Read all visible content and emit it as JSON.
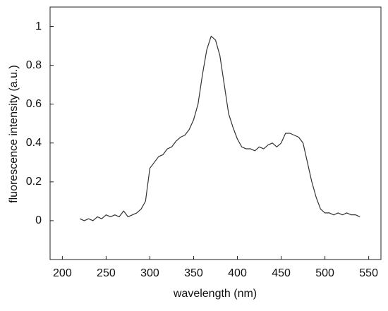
{
  "chart_data": {
    "type": "line",
    "xlabel": "wavelength (nm)",
    "ylabel": "fluorescence intensity  (a.u.)",
    "x": [
      220,
      225,
      230,
      235,
      240,
      245,
      250,
      255,
      260,
      265,
      270,
      275,
      280,
      285,
      290,
      295,
      300,
      305,
      310,
      315,
      320,
      325,
      330,
      335,
      340,
      345,
      350,
      355,
      360,
      365,
      370,
      375,
      380,
      385,
      390,
      395,
      400,
      405,
      410,
      415,
      420,
      425,
      430,
      435,
      440,
      445,
      450,
      455,
      460,
      465,
      470,
      475,
      480,
      485,
      490,
      495,
      500,
      505,
      510,
      515,
      520,
      525,
      530,
      535,
      540
    ],
    "values": [
      0.01,
      0.0,
      0.01,
      0.0,
      0.02,
      0.01,
      0.03,
      0.02,
      0.03,
      0.02,
      0.05,
      0.02,
      0.03,
      0.04,
      0.06,
      0.1,
      0.27,
      0.3,
      0.33,
      0.34,
      0.37,
      0.38,
      0.41,
      0.43,
      0.44,
      0.47,
      0.52,
      0.6,
      0.75,
      0.88,
      0.95,
      0.93,
      0.85,
      0.7,
      0.55,
      0.48,
      0.42,
      0.38,
      0.37,
      0.37,
      0.36,
      0.38,
      0.37,
      0.39,
      0.4,
      0.38,
      0.4,
      0.45,
      0.45,
      0.44,
      0.43,
      0.4,
      0.3,
      0.2,
      0.12,
      0.06,
      0.04,
      0.04,
      0.03,
      0.04,
      0.03,
      0.04,
      0.03,
      0.03,
      0.02
    ],
    "color": "#333333",
    "xlim": [
      186,
      564
    ],
    "xticks": [
      200,
      250,
      300,
      350,
      400,
      450,
      500,
      550
    ],
    "ylim": [
      -0.2,
      1.1
    ],
    "yticks": [
      0,
      0.2,
      0.4,
      0.6,
      0.8,
      1
    ],
    "grid": false
  }
}
